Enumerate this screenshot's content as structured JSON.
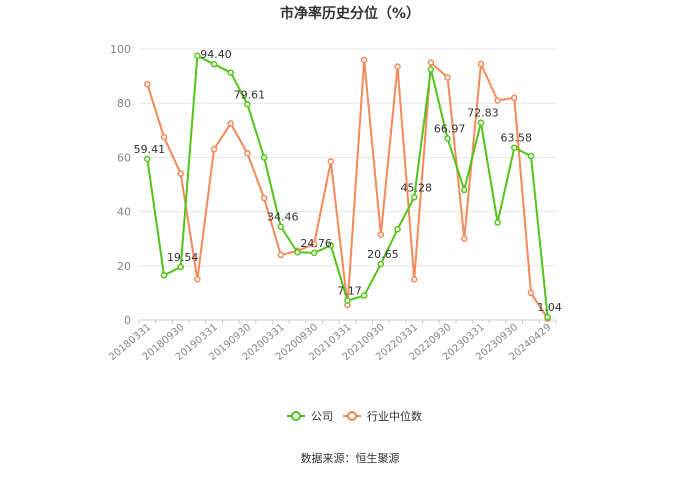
{
  "chart_data": {
    "type": "line",
    "title": "市净率历史分位（%）",
    "source": "数据来源：恒生聚源",
    "ylim": [
      0,
      100
    ],
    "yticks": [
      0,
      20,
      40,
      60,
      80,
      100
    ],
    "grid": true,
    "legend_position": "bottom",
    "x": [
      "20180331",
      "20180630",
      "20180930",
      "20181231",
      "20190331",
      "20190630",
      "20190930",
      "20191231",
      "20200331",
      "20200630",
      "20200930",
      "20201231",
      "20210331",
      "20210630",
      "20210930",
      "20211231",
      "20220331",
      "20220630",
      "20220930",
      "20221231",
      "20230331",
      "20230630",
      "20230930",
      "20231231",
      "20240429"
    ],
    "xtick_labels": [
      "20180331",
      "20180930",
      "20190331",
      "20190930",
      "20200331",
      "20200930",
      "20210331",
      "20210930",
      "20220331",
      "20220930",
      "20230331",
      "20230930",
      "20240429"
    ],
    "series": [
      {
        "name": "公司",
        "color": "#52c41a",
        "values": [
          59.41,
          16.5,
          19.54,
          97.5,
          94.4,
          91.3,
          79.61,
          60.0,
          34.46,
          25.0,
          24.76,
          27.5,
          7.17,
          9.0,
          20.65,
          33.5,
          45.28,
          92.5,
          66.97,
          48.0,
          72.83,
          36.0,
          63.58,
          60.5,
          1.04
        ],
        "labels": {
          "0": "59.41",
          "2": "19.54",
          "4": "94.40",
          "6": "79.61",
          "8": "34.46",
          "10": "24.76",
          "12": "7.17",
          "14": "20.65",
          "16": "45.28",
          "18": "66.97",
          "20": "72.83",
          "22": "63.58",
          "24": "1.04"
        }
      },
      {
        "name": "行业中位数",
        "color": "#f5895a",
        "values": [
          87.0,
          67.5,
          54.0,
          15.0,
          63.0,
          72.5,
          61.5,
          45.0,
          24.0,
          25.5,
          28.0,
          58.5,
          5.5,
          96.0,
          31.5,
          93.5,
          15.0,
          95.0,
          89.5,
          30.0,
          94.5,
          81.0,
          82.0,
          10.0,
          0.5
        ]
      }
    ]
  }
}
